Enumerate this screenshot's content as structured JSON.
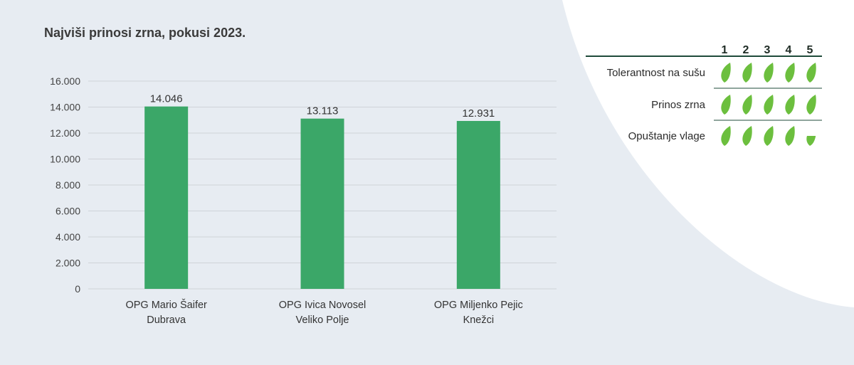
{
  "chart_data": {
    "type": "bar",
    "title": "Najviši prinosi zrna, pokusi 2023.",
    "categories": [
      [
        "OPG Mario Šaifer",
        "Dubrava"
      ],
      [
        "OPG Ivica Novosel",
        "Veliko Polje"
      ],
      [
        "OPG Miljenko Pejic",
        "Knežci"
      ]
    ],
    "values": [
      14046,
      13113,
      12931
    ],
    "value_labels": [
      "14.046",
      "13.113",
      "12.931"
    ],
    "ylim": [
      0,
      16000
    ],
    "yticks": [
      0,
      2000,
      4000,
      6000,
      8000,
      10000,
      12000,
      14000,
      16000
    ],
    "ytick_labels": [
      "0",
      "2.000",
      "4.000",
      "6.000",
      "8.000",
      "10.000",
      "12.000",
      "14.000",
      "16.000"
    ],
    "xlabel": "",
    "ylabel": "",
    "grid": true,
    "bar_color": "#3ba768"
  },
  "ratings": {
    "scale_labels": [
      "1",
      "2",
      "3",
      "4",
      "5"
    ],
    "max": 5,
    "rows": [
      {
        "label": "Tolerantnost na sušu",
        "score": 5
      },
      {
        "label": "Prinos zrna",
        "score": 5
      },
      {
        "label": "Opuštanje vlage",
        "score": 4.5
      }
    ],
    "leaf_color": "#6cbf3e",
    "line_color": "#1f4b3a"
  },
  "colors": {
    "background": "#e7ecf2",
    "panel": "#ffffff",
    "grid": "#cfd3d8",
    "text": "#333333"
  }
}
